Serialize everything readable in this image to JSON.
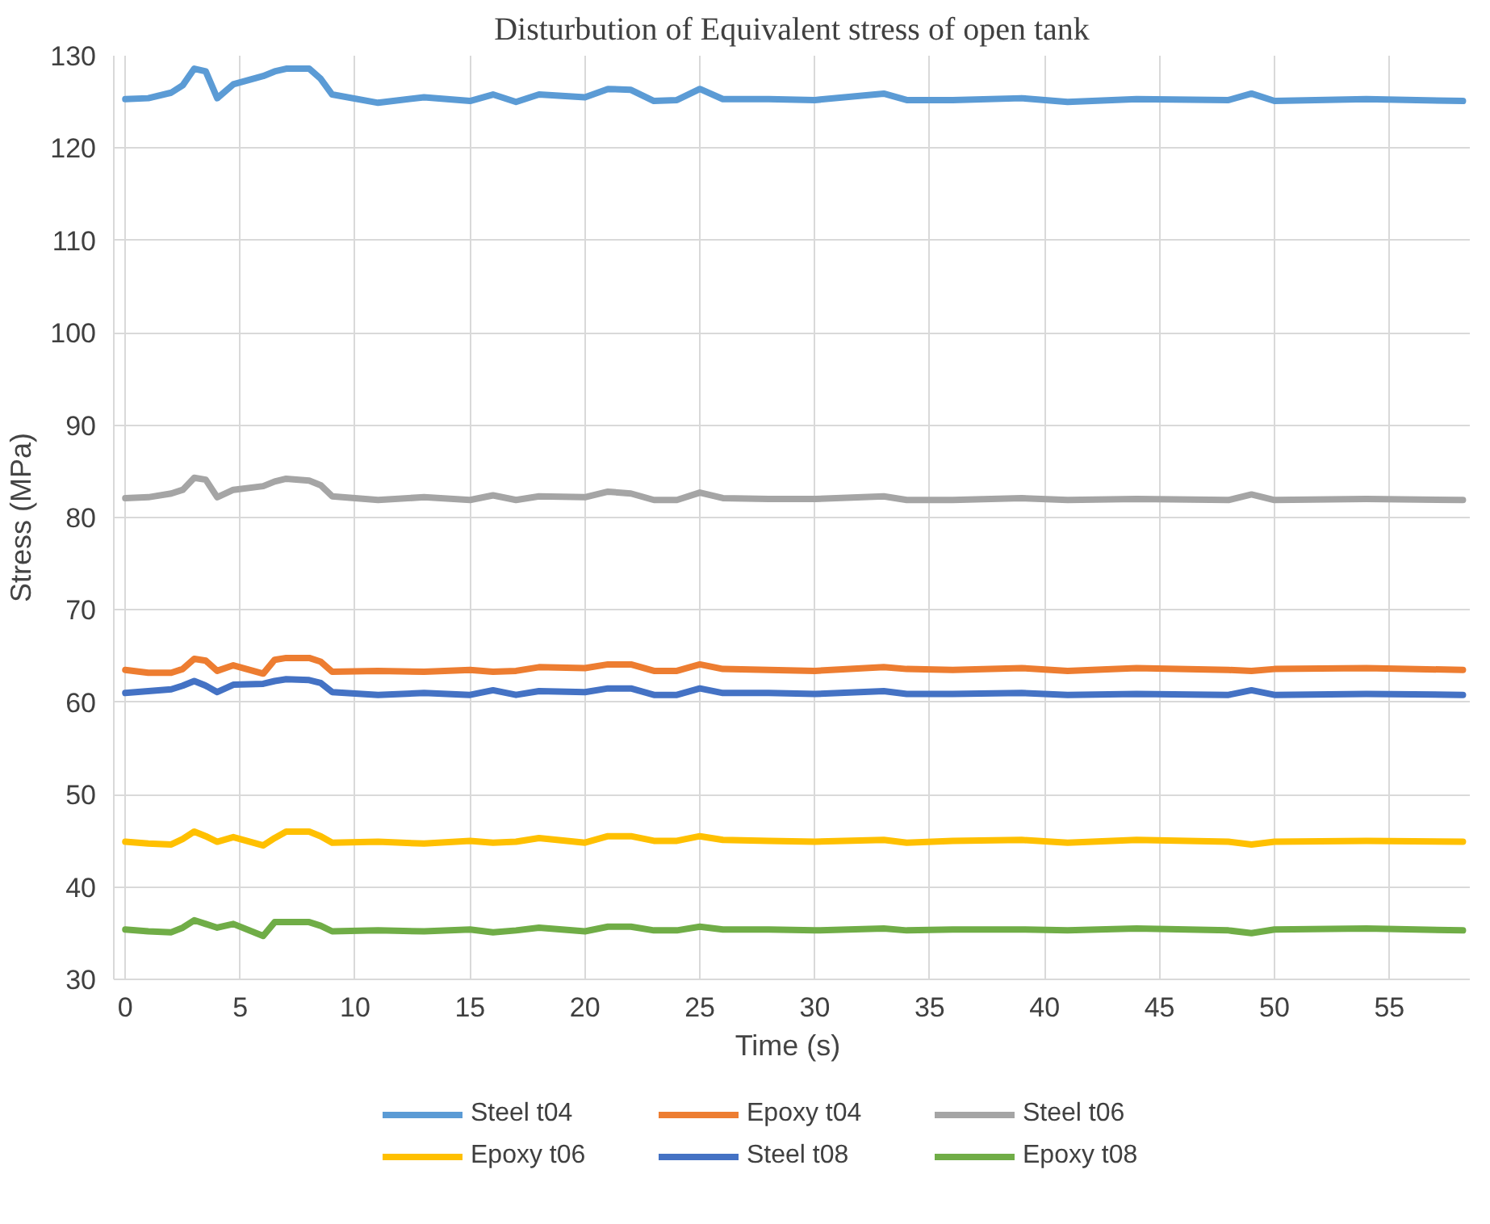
{
  "chart_data": {
    "type": "line",
    "title": "Disturbution of Equivalent stress of open tank",
    "xlabel": "Time  (s)",
    "ylabel": "Stress (MPa)",
    "x": [
      0,
      1,
      2,
      2.5,
      3,
      3.5,
      4,
      4.7,
      6,
      6.5,
      7,
      8,
      8.5,
      9,
      11,
      13,
      15,
      16,
      17,
      18,
      20,
      21,
      22,
      23,
      24,
      25,
      26,
      28,
      30,
      33,
      34,
      36,
      39,
      41,
      44,
      48,
      49,
      50,
      54,
      58.2
    ],
    "series": [
      {
        "name": "Steel t04",
        "color": "#5b9bd5",
        "values": [
          125.3,
          125.4,
          126,
          126.8,
          128.6,
          128.3,
          125.4,
          126.9,
          127.8,
          128.3,
          128.6,
          128.6,
          127.5,
          125.8,
          124.9,
          125.5,
          125.1,
          125.8,
          125.0,
          125.8,
          125.5,
          126.4,
          126.3,
          125.1,
          125.2,
          126.4,
          125.3,
          125.3,
          125.2,
          125.9,
          125.2,
          125.2,
          125.4,
          125.0,
          125.3,
          125.2,
          125.9,
          125.1,
          125.3,
          125.1
        ]
      },
      {
        "name": "Epoxy t04",
        "color": "#ed7d31",
        "values": [
          63.5,
          63.2,
          63.2,
          63.6,
          64.7,
          64.5,
          63.4,
          64.0,
          63.1,
          64.6,
          64.8,
          64.8,
          64.4,
          63.3,
          63.4,
          63.3,
          63.5,
          63.3,
          63.4,
          63.8,
          63.7,
          64.1,
          64.1,
          63.4,
          63.4,
          64.1,
          63.6,
          63.5,
          63.4,
          63.8,
          63.6,
          63.5,
          63.7,
          63.4,
          63.7,
          63.5,
          63.4,
          63.6,
          63.7,
          63.5
        ]
      },
      {
        "name": "Steel t06",
        "color": "#a5a5a5",
        "values": [
          82.1,
          82.2,
          82.6,
          83.0,
          84.3,
          84.1,
          82.2,
          83.0,
          83.4,
          83.9,
          84.2,
          84.0,
          83.5,
          82.3,
          81.9,
          82.2,
          81.9,
          82.4,
          81.9,
          82.3,
          82.2,
          82.8,
          82.6,
          81.9,
          81.9,
          82.7,
          82.1,
          82.0,
          82.0,
          82.3,
          81.9,
          81.9,
          82.1,
          81.9,
          82.0,
          81.9,
          82.5,
          81.9,
          82.0,
          81.9
        ]
      },
      {
        "name": "Epoxy t06",
        "color": "#ffc000",
        "values": [
          44.9,
          44.7,
          44.6,
          45.2,
          46.0,
          45.5,
          44.9,
          45.4,
          44.5,
          45.3,
          46.0,
          46.0,
          45.5,
          44.8,
          44.9,
          44.7,
          45.0,
          44.8,
          44.9,
          45.3,
          44.8,
          45.5,
          45.5,
          45.0,
          45.0,
          45.5,
          45.1,
          45.0,
          44.9,
          45.1,
          44.8,
          45.0,
          45.1,
          44.8,
          45.1,
          44.9,
          44.6,
          44.9,
          45.0,
          44.9
        ]
      },
      {
        "name": "Steel t08",
        "color": "#4472c4",
        "values": [
          61.0,
          61.2,
          61.4,
          61.8,
          62.3,
          61.8,
          61.1,
          61.9,
          62.0,
          62.3,
          62.5,
          62.4,
          62.1,
          61.1,
          60.8,
          61.0,
          60.8,
          61.3,
          60.8,
          61.2,
          61.1,
          61.5,
          61.5,
          60.8,
          60.8,
          61.5,
          61.0,
          61.0,
          60.9,
          61.2,
          60.9,
          60.9,
          61.0,
          60.8,
          60.9,
          60.8,
          61.3,
          60.8,
          60.9,
          60.8
        ]
      },
      {
        "name": "Epoxy t08",
        "color": "#70ad47",
        "values": [
          35.4,
          35.2,
          35.1,
          35.6,
          36.4,
          36.0,
          35.6,
          36.0,
          34.7,
          36.2,
          36.2,
          36.2,
          35.8,
          35.2,
          35.3,
          35.2,
          35.4,
          35.1,
          35.3,
          35.6,
          35.2,
          35.7,
          35.7,
          35.3,
          35.3,
          35.7,
          35.4,
          35.4,
          35.3,
          35.5,
          35.3,
          35.4,
          35.4,
          35.3,
          35.5,
          35.3,
          35.0,
          35.4,
          35.5,
          35.3
        ]
      }
    ],
    "xlim": [
      -0.5,
      58.5
    ],
    "xticks": [
      0,
      5,
      10,
      15,
      20,
      25,
      30,
      35,
      40,
      45,
      50,
      55
    ],
    "ylim": [
      30,
      130
    ],
    "yticks": [
      30,
      40,
      50,
      60,
      70,
      80,
      90,
      100,
      110,
      120,
      130
    ],
    "grid": true,
    "legend": "bottom",
    "marker": "none",
    "line_style": "solid"
  }
}
